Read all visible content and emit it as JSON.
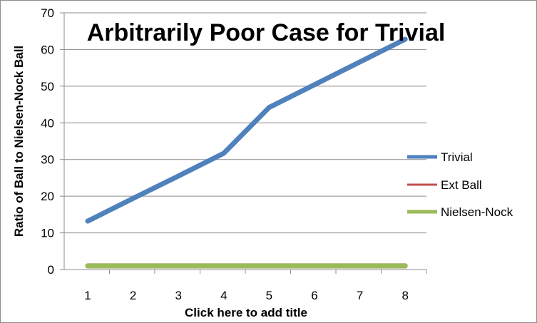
{
  "chart_data": {
    "type": "line",
    "title": "Arbitrarily Poor Case for Trivial",
    "xlabel": "Click here to add title",
    "ylabel": "Ratio of Ball to Nielsen-Nock Ball",
    "x": [
      1,
      2,
      3,
      4,
      5,
      6,
      7,
      8
    ],
    "x_tick_labels": [
      "1",
      "2",
      "3",
      "4",
      "5",
      "6",
      "7",
      "8"
    ],
    "ylim": [
      0,
      70
    ],
    "y_ticks": [
      0,
      10,
      20,
      30,
      40,
      50,
      60,
      70
    ],
    "y_tick_labels": [
      "0",
      "10",
      "20",
      "30",
      "40",
      "50",
      "60",
      "70"
    ],
    "grid": "horizontal",
    "legend_position": "right",
    "series": [
      {
        "name": "Trivial",
        "color": "#4f81bd",
        "values": [
          13.2,
          19.4,
          25.5,
          31.7,
          44.2,
          50.4,
          56.6,
          62.8
        ]
      },
      {
        "name": "Ext Ball",
        "color": "#c0504d",
        "values": [
          1,
          1,
          1,
          1,
          1,
          1,
          1,
          1
        ]
      },
      {
        "name": "Nielsen-Nock",
        "color": "#9bbb59",
        "values": [
          1,
          1,
          1,
          1,
          1,
          1,
          1,
          1
        ]
      }
    ]
  }
}
